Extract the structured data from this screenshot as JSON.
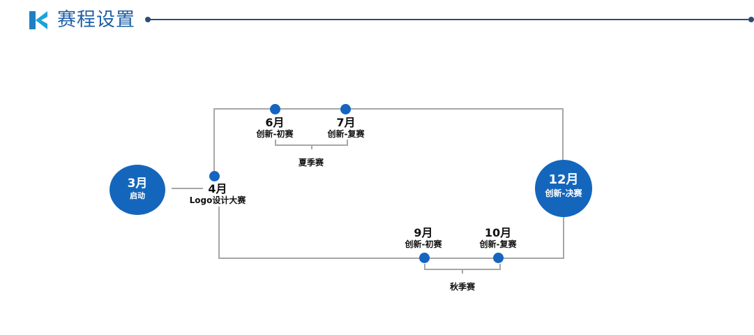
{
  "header": {
    "title": "赛程设置",
    "accent_color": "#1f5fa6",
    "logo_icon": "k-logo-icon"
  },
  "start": {
    "month": "3月",
    "label": "启动"
  },
  "final": {
    "month": "12月",
    "label": "创新-决赛"
  },
  "milestones": [
    {
      "month": "4月",
      "label": "Logo设计大赛"
    },
    {
      "month": "6月",
      "label": "创新-初赛"
    },
    {
      "month": "7月",
      "label": "创新-复赛"
    },
    {
      "month": "9月",
      "label": "创新-初赛"
    },
    {
      "month": "10月",
      "label": "创新-复赛"
    }
  ],
  "seasons": {
    "summer": "夏季赛",
    "autumn": "秋季赛"
  },
  "colors": {
    "node_blue": "#1466bd",
    "line_gray": "#a6a6a6"
  }
}
